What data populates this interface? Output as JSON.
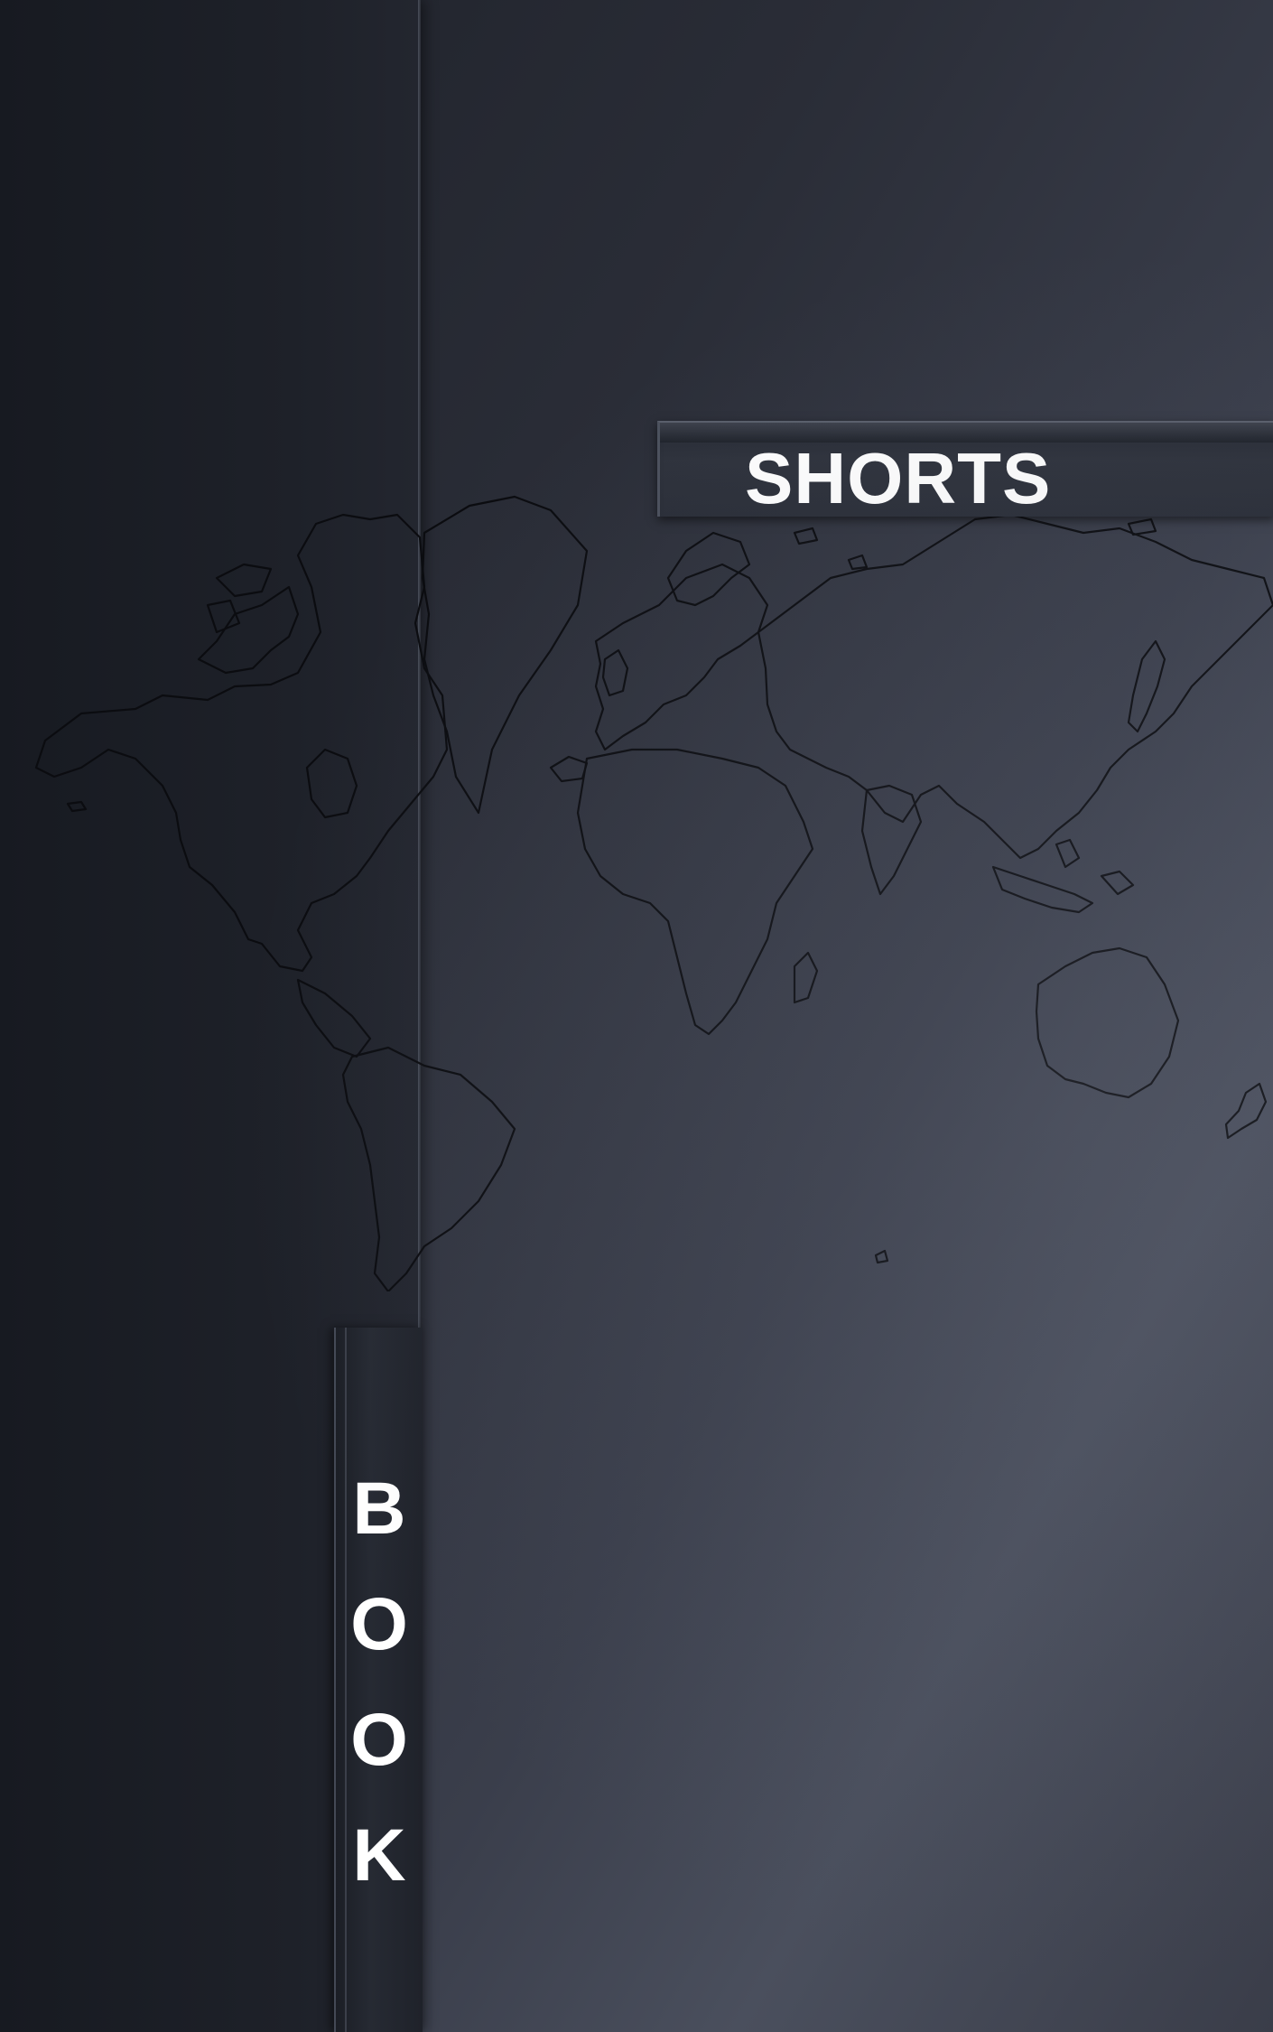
{
  "cover": {
    "title": "SHORTS",
    "spine_letters": [
      "B",
      "O",
      "O",
      "K"
    ]
  },
  "colors": {
    "background_dark": "#1d2028",
    "background_light": "#4a4f5d",
    "map_outline": "#0b0c10",
    "text": "#ffffff"
  },
  "map": {
    "icon": "world-map-outline"
  }
}
